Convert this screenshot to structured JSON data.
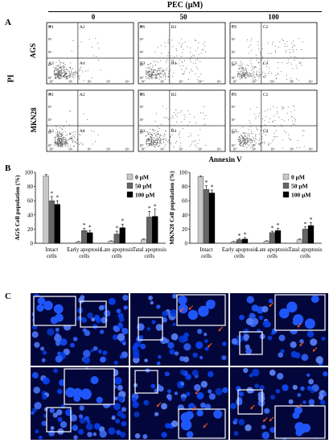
{
  "panelA": {
    "label": "A",
    "header": "PEC (μM)",
    "columns": [
      "0",
      "50",
      "100"
    ],
    "rows": [
      "AGS",
      "MKN28"
    ],
    "ylabel": "PI",
    "xlabel": "Annexin V",
    "quadrants": [
      [
        "A1",
        "A2",
        "A3",
        "A4"
      ],
      [
        "B1",
        "B2",
        "B3",
        "B4"
      ],
      [
        "C1",
        "C2",
        "C3",
        "C4"
      ]
    ],
    "tick_labels": [
      "10°",
      "10¹",
      "10²",
      "10³",
      "10⁴"
    ]
  },
  "panelB": {
    "label": "B"
  },
  "panelC": {
    "label": "C"
  },
  "chart_data": [
    {
      "type": "bar",
      "title": "",
      "ylabel": "AGS Cell population (%)",
      "xlabel": "",
      "ylim": [
        0,
        100
      ],
      "yticks": [
        0,
        20,
        40,
        60,
        80,
        100
      ],
      "categories": [
        "Intact cells",
        "Early apoptosis cells",
        "Late apoptosis cells",
        "Tatal apoptosis cells"
      ],
      "series": [
        {
          "name": "0 μM",
          "values": [
            95,
            2,
            3,
            5
          ],
          "errors": [
            2,
            0.5,
            0.5,
            1
          ]
        },
        {
          "name": "50 μM",
          "values": [
            60,
            18,
            13,
            37
          ],
          "errors": [
            6,
            3,
            4,
            8
          ]
        },
        {
          "name": "100 μM",
          "values": [
            55,
            15,
            22,
            38
          ],
          "errors": [
            5,
            3,
            5,
            10
          ]
        }
      ],
      "annotations": [
        "*",
        "*",
        "*",
        "*",
        "*",
        "*",
        "*",
        "*"
      ],
      "legend": "top-right",
      "colors": [
        "#c8c8c8",
        "#666666",
        "#000000"
      ]
    },
    {
      "type": "bar",
      "title": "",
      "ylabel": "MKN28 Cell population (%)",
      "xlabel": "",
      "ylim": [
        0,
        100
      ],
      "yticks": [
        0,
        20,
        40,
        60,
        80,
        100
      ],
      "categories": [
        "Intact cells",
        "Early apoptosis cells",
        "Late apoptosis cells",
        "Tatal apoptosis cells"
      ],
      "series": [
        {
          "name": "0 μM",
          "values": [
            94,
            2,
            3,
            5
          ],
          "errors": [
            1,
            0.5,
            0.5,
            1
          ]
        },
        {
          "name": "50 μM",
          "values": [
            76,
            5,
            15,
            20
          ],
          "errors": [
            5,
            1,
            2,
            3
          ]
        },
        {
          "name": "100 μM",
          "values": [
            71,
            6,
            18,
            25
          ],
          "errors": [
            4,
            2,
            3,
            4
          ]
        }
      ],
      "annotations": [
        "*",
        "*",
        "*",
        "*",
        "*",
        "*",
        "*",
        "*"
      ],
      "legend": "top-right",
      "colors": [
        "#c8c8c8",
        "#666666",
        "#000000"
      ]
    }
  ],
  "colors": {
    "fluorescence_bg": "#02063a",
    "nuclei": "#2a5bff",
    "inset_border": "#ffffff",
    "arrow": "#ff5a1e"
  }
}
